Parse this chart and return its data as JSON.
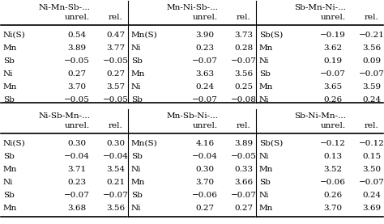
{
  "tables": [
    {
      "title": "Ni-Mn-Sb-...",
      "rows": [
        [
          "Ni(S)",
          "0.54",
          "0.47"
        ],
        [
          "Mn",
          "3.89",
          "3.77"
        ],
        [
          "Sb",
          "−0.05",
          "−0.05"
        ],
        [
          "Ni",
          "0.27",
          "0.27"
        ],
        [
          "Mn",
          "3.70",
          "3.57"
        ],
        [
          "Sb",
          "−0.05",
          "−0.05"
        ]
      ]
    },
    {
      "title": "Mn-Ni-Sb-...",
      "rows": [
        [
          "Mn(S)",
          "3.90",
          "3.73"
        ],
        [
          "Ni",
          "0.23",
          "0.28"
        ],
        [
          "Sb",
          "−0.07",
          "−0.07"
        ],
        [
          "Mn",
          "3.63",
          "3.56"
        ],
        [
          "Ni",
          "0.24",
          "0.25"
        ],
        [
          "Sb",
          "−0.07",
          "−0.08"
        ]
      ]
    },
    {
      "title": "Sb-Mn-Ni-...",
      "rows": [
        [
          "Sb(S)",
          "−0.19",
          "−0.21"
        ],
        [
          "Mn",
          "3.62",
          "3.56"
        ],
        [
          "Ni",
          "0.19",
          "0.09"
        ],
        [
          "Sb",
          "−0.07",
          "−0.07"
        ],
        [
          "Mn",
          "3.65",
          "3.59"
        ],
        [
          "Ni",
          "0.26",
          "0.24"
        ]
      ]
    },
    {
      "title": "Ni-Sb-Mn-...",
      "rows": [
        [
          "Ni(S)",
          "0.30",
          "0.30"
        ],
        [
          "Sb",
          "−0.04",
          "−0.04"
        ],
        [
          "Mn",
          "3.71",
          "3.54"
        ],
        [
          "Ni",
          "0.23",
          "0.21"
        ],
        [
          "Sb",
          "−0.07",
          "−0.07"
        ],
        [
          "Mn",
          "3.68",
          "3.56"
        ]
      ]
    },
    {
      "title": "Mn-Sb-Ni-...",
      "rows": [
        [
          "Mn(S)",
          "4.16",
          "3.89"
        ],
        [
          "Sb",
          "−0.04",
          "−0.05"
        ],
        [
          "Ni",
          "0.30",
          "0.33"
        ],
        [
          "Mn",
          "3.70",
          "3.66"
        ],
        [
          "Sb",
          "−0.06",
          "−0.07"
        ],
        [
          "Ni",
          "0.27",
          "0.27"
        ]
      ]
    },
    {
      "title": "Sb-Ni-Mn-...",
      "rows": [
        [
          "Sb(S)",
          "−0.12",
          "−0.12"
        ],
        [
          "Ni",
          "0.13",
          "0.15"
        ],
        [
          "Mn",
          "3.52",
          "3.50"
        ],
        [
          "Sb",
          "−0.06",
          "−0.07"
        ],
        [
          "Ni",
          "0.26",
          "0.24"
        ],
        [
          "Mn",
          "3.70",
          "3.69"
        ]
      ]
    }
  ],
  "fontsize": 7.5,
  "bg_color": "#ffffff"
}
